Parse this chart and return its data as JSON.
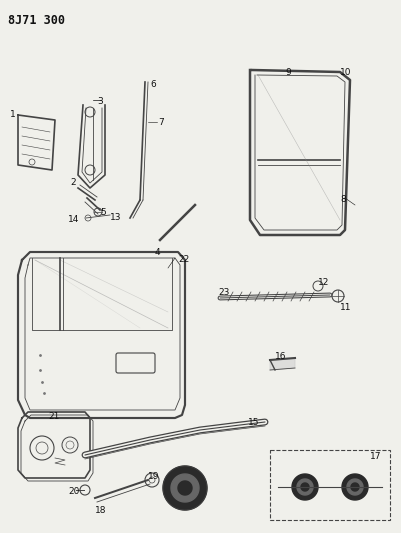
{
  "title": "8J71 300",
  "bg": "#f5f5f0",
  "line_color": "#444444",
  "dark": "#111111",
  "fig_width": 4.01,
  "fig_height": 5.33,
  "dpi": 100
}
